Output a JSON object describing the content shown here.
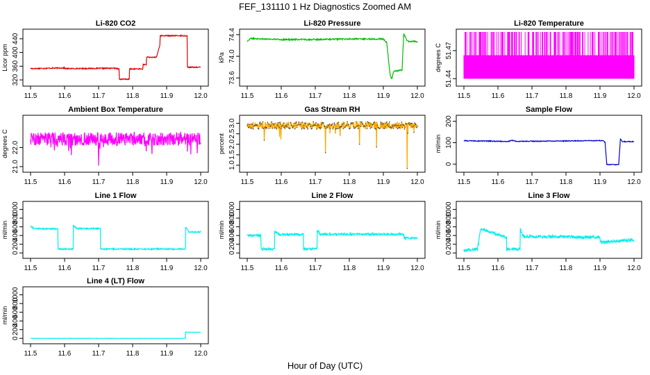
{
  "title": "FEF_131110  1 Hz Diagnostics Zoomed AM",
  "xlabel": "Hour of Day (UTC)",
  "chart_data": [
    {
      "type": "line",
      "title": "Li-820 CO2",
      "ylabel": "Licor ppm",
      "color": "#dd0000",
      "xlim": [
        11.5,
        12.0
      ],
      "ylim": [
        310,
        460
      ],
      "xticks": [
        "11.5",
        "11.6",
        "11.7",
        "11.8",
        "11.9",
        "12.0"
      ],
      "yticks": [
        320,
        360,
        400,
        440
      ],
      "x": [
        11.5,
        11.6,
        11.6,
        11.75,
        11.75,
        11.76,
        11.76,
        11.79,
        11.79,
        11.83,
        11.83,
        11.84,
        11.84,
        11.87,
        11.87,
        11.88,
        11.88,
        11.96,
        11.96,
        12.0
      ],
      "y": [
        353,
        355,
        353,
        354,
        354,
        352,
        322,
        322,
        352,
        352,
        365,
        365,
        386,
        386,
        386,
        422,
        449,
        449,
        357,
        357
      ],
      "noise": 1.5
    },
    {
      "type": "line",
      "title": "Li-820 Pressure",
      "ylabel": "kPa",
      "color": "#00bb00",
      "xlim": [
        11.5,
        12.0
      ],
      "ylim": [
        73.5,
        74.45
      ],
      "xticks": [
        "11.5",
        "11.6",
        "11.7",
        "11.8",
        "11.9",
        "12.0"
      ],
      "yticks": [
        "73.6",
        "74.0",
        "74.4"
      ],
      "x": [
        11.5,
        11.51,
        11.6,
        11.7,
        11.8,
        11.9,
        11.91,
        11.92,
        11.925,
        11.93,
        11.955,
        11.96,
        11.97,
        12.0
      ],
      "y": [
        74.28,
        74.33,
        74.31,
        74.31,
        74.32,
        74.32,
        74.25,
        73.65,
        73.58,
        73.72,
        73.75,
        74.42,
        74.28,
        74.27
      ],
      "noise": 0.012
    },
    {
      "type": "spikes",
      "title": "Li-820 Temperature",
      "ylabel": "degrees C",
      "color": "#ff00ff",
      "xlim": [
        11.5,
        12.0
      ],
      "ylim": [
        51.435,
        51.49
      ],
      "xticks": [
        "11.5",
        "11.6",
        "11.7",
        "11.8",
        "11.9",
        "12.0"
      ],
      "yticks": [
        "51.44",
        "51.47"
      ],
      "levels": [
        51.44,
        51.465,
        51.49
      ],
      "x": [
        11.5,
        12.0
      ]
    },
    {
      "type": "line",
      "title": "Ambient Box Temperature",
      "ylabel": "degrees C",
      "color": "#ff00ff",
      "xlim": [
        11.5,
        12.0
      ],
      "ylim": [
        20.85,
        23.55
      ],
      "xticks": [
        "11.5",
        "11.6",
        "11.7",
        "11.8",
        "11.9",
        "12.0"
      ],
      "yticks": [
        "21.0",
        "22.0"
      ],
      "x": [
        11.5,
        12.0
      ],
      "y": [
        22.45,
        22.45
      ],
      "noise": 0.35,
      "dips": [
        [
          11.62,
          21.6
        ],
        [
          11.7,
          21.05
        ],
        [
          11.84,
          21.8
        ],
        [
          11.57,
          21.85
        ],
        [
          11.99,
          21.7
        ]
      ]
    },
    {
      "type": "points",
      "title": "Gas Stream RH",
      "ylabel": "percent",
      "color": "#ffaa00",
      "color2": "#444444",
      "xlim": [
        11.5,
        12.0
      ],
      "ylim": [
        0.8,
        3.25
      ],
      "xticks": [
        "11.5",
        "11.6",
        "11.7",
        "11.8",
        "11.9",
        "12.0"
      ],
      "yticks": [
        "1.0",
        "1.5",
        "2.0",
        "2.5",
        "3.0"
      ],
      "x": [
        11.5,
        12.0
      ],
      "y": [
        2.9,
        2.9
      ],
      "noise": 0.18,
      "dips": [
        [
          11.73,
          1.6
        ],
        [
          11.83,
          2.0
        ],
        [
          11.97,
          0.85
        ],
        [
          11.55,
          2.2
        ],
        [
          11.88,
          2.1
        ]
      ]
    },
    {
      "type": "line",
      "title": "Sample Flow",
      "ylabel": "ml/min",
      "color": "#0000cc",
      "xlim": [
        11.5,
        12.0
      ],
      "ylim": [
        -25,
        215
      ],
      "xticks": [
        "11.5",
        "11.6",
        "11.7",
        "11.8",
        "11.9",
        "12.0"
      ],
      "yticks": [
        0,
        100,
        200
      ],
      "x": [
        11.5,
        11.63,
        11.64,
        11.66,
        11.91,
        11.915,
        11.92,
        11.955,
        11.96,
        11.965,
        12.0
      ],
      "y": [
        109,
        106,
        110,
        106,
        110,
        100,
        -2,
        -2,
        118,
        105,
        105
      ],
      "noise": 2
    },
    {
      "type": "line",
      "title": "Line 1 Flow",
      "ylabel": "ml/min",
      "color": "#00eeee",
      "xlim": [
        11.5,
        12.0
      ],
      "ylim": [
        -60,
        1120
      ],
      "xticks": [
        "11.5",
        "11.6",
        "11.7",
        "11.8",
        "11.9",
        "12.0"
      ],
      "yticks": [
        0,
        200,
        400,
        600,
        800,
        1000
      ],
      "x": [
        11.5,
        11.51,
        11.58,
        11.58,
        11.625,
        11.625,
        11.635,
        11.705,
        11.705,
        11.955,
        11.955,
        11.965,
        12.0
      ],
      "y": [
        620,
        560,
        550,
        90,
        90,
        640,
        560,
        560,
        90,
        90,
        610,
        480,
        480
      ],
      "noise": 15
    },
    {
      "type": "line",
      "title": "Line 2 Flow",
      "ylabel": "ml/min",
      "color": "#00eeee",
      "xlim": [
        11.5,
        12.0
      ],
      "ylim": [
        -60,
        1120
      ],
      "xticks": [
        "11.5",
        "11.6",
        "11.7",
        "11.8",
        "11.9",
        "12.0"
      ],
      "yticks": [
        0,
        200,
        400,
        600,
        800,
        1000
      ],
      "x": [
        11.5,
        11.54,
        11.54,
        11.58,
        11.58,
        11.595,
        11.665,
        11.665,
        11.705,
        11.705,
        11.715,
        11.96,
        11.96,
        12.0
      ],
      "y": [
        400,
        400,
        90,
        90,
        500,
        420,
        420,
        90,
        90,
        520,
        430,
        430,
        340,
        340
      ],
      "noise": 25
    },
    {
      "type": "line",
      "title": "Line 3 Flow",
      "ylabel": "ml/min",
      "color": "#00eeee",
      "xlim": [
        11.5,
        12.0
      ],
      "ylim": [
        -60,
        1120
      ],
      "xticks": [
        "11.5",
        "11.6",
        "11.7",
        "11.8",
        "11.9",
        "12.0"
      ],
      "yticks": [
        0,
        200,
        400,
        600,
        800,
        1000
      ],
      "x": [
        11.5,
        11.54,
        11.54,
        11.55,
        11.625,
        11.625,
        11.665,
        11.665,
        11.675,
        11.9,
        11.9,
        12.0
      ],
      "y": [
        60,
        90,
        90,
        560,
        350,
        90,
        90,
        560,
        380,
        360,
        240,
        300
      ],
      "noise": 35
    },
    {
      "type": "line",
      "title": "Line 4 (LT) Flow",
      "ylabel": "ml/min",
      "color": "#00eeee",
      "xlim": [
        11.5,
        12.0
      ],
      "ylim": [
        -60,
        1120
      ],
      "xticks": [
        "11.5",
        "11.6",
        "11.7",
        "11.8",
        "11.9",
        "12.0"
      ],
      "yticks": [
        0,
        200,
        400,
        600,
        800,
        1000
      ],
      "x": [
        11.5,
        11.955,
        11.955,
        11.96,
        12.0
      ],
      "y": [
        0,
        0,
        150,
        140,
        140
      ],
      "noise": 3
    }
  ]
}
